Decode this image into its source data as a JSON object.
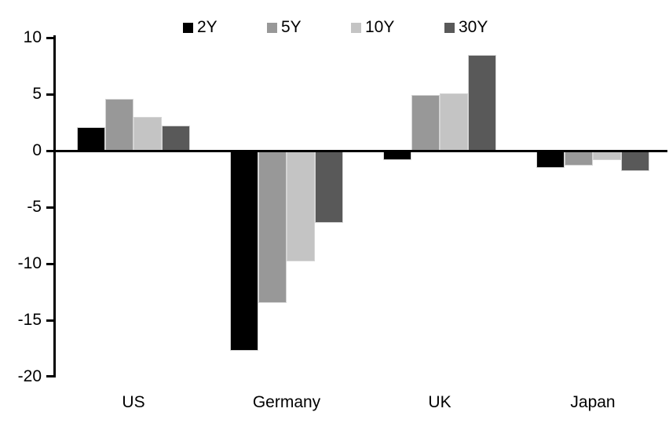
{
  "chart_data": {
    "type": "bar",
    "title": "",
    "xlabel": "",
    "ylabel": "",
    "categories": [
      "US",
      "Germany",
      "UK",
      "Japan"
    ],
    "series": [
      {
        "name": "2Y",
        "color": "#000000",
        "values": [
          2.1,
          -17.7,
          -0.8,
          -1.5
        ]
      },
      {
        "name": "5Y",
        "color": "#989898",
        "values": [
          4.6,
          -13.5,
          4.9,
          -1.3
        ]
      },
      {
        "name": "10Y",
        "color": "#c4c4c4",
        "values": [
          3.0,
          -9.8,
          5.1,
          -0.8
        ]
      },
      {
        "name": "30Y",
        "color": "#595959",
        "values": [
          2.2,
          -6.4,
          8.5,
          -1.8
        ]
      }
    ],
    "ylim": [
      -20,
      10
    ],
    "yticks": [
      10,
      5,
      0,
      -5,
      -10,
      -15,
      -20
    ],
    "legend_position": "top",
    "grid": false,
    "axis_color": "#000000",
    "background_color": "#ffffff"
  }
}
